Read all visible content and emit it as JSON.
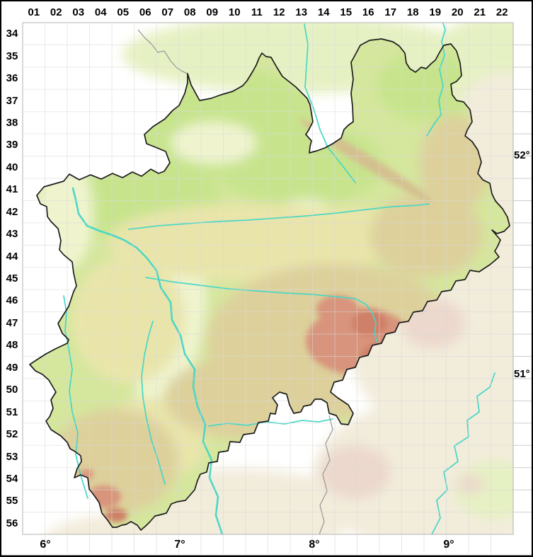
{
  "grid": {
    "column_labels": [
      "01",
      "02",
      "03",
      "04",
      "05",
      "06",
      "07",
      "08",
      "09",
      "10",
      "11",
      "12",
      "13",
      "14",
      "15",
      "16",
      "17",
      "18",
      "19",
      "20",
      "21",
      "22"
    ],
    "row_labels": [
      "34",
      "35",
      "36",
      "37",
      "38",
      "39",
      "40",
      "41",
      "42",
      "43",
      "44",
      "45",
      "46",
      "47",
      "48",
      "49",
      "50",
      "51",
      "52",
      "53",
      "54",
      "55",
      "56"
    ]
  },
  "axis": {
    "longitude_labels": [
      "6°",
      "7°",
      "8°",
      "9°"
    ],
    "latitude_labels": [
      "52°",
      "51°"
    ]
  },
  "map": {
    "colors": {
      "background": "#ffffff",
      "lowland_green": "#d5e79d",
      "bright_green": "#c7e48d",
      "pale_patch": "#eff4cf",
      "yellow_band": "#e9e5aa",
      "tan_hills": "#ddd09b",
      "ridge_tan": "#d4bf8f",
      "mountain_red": "#d8947b",
      "mountain_red_dark": "#cf8068",
      "outside_green": "#e6f1c3",
      "outside_cream": "#f2ecdb",
      "outside_pink": "#ecd8cc",
      "river": "#45d6c6",
      "boundary": "#1c1c1c",
      "state_border": "#9a9a9a",
      "grid_line": "#d9d9d9",
      "margin_line": "#c6c6c6",
      "map_border": "#b3b3b3",
      "bottom_bar": "#8c8c8c"
    }
  }
}
